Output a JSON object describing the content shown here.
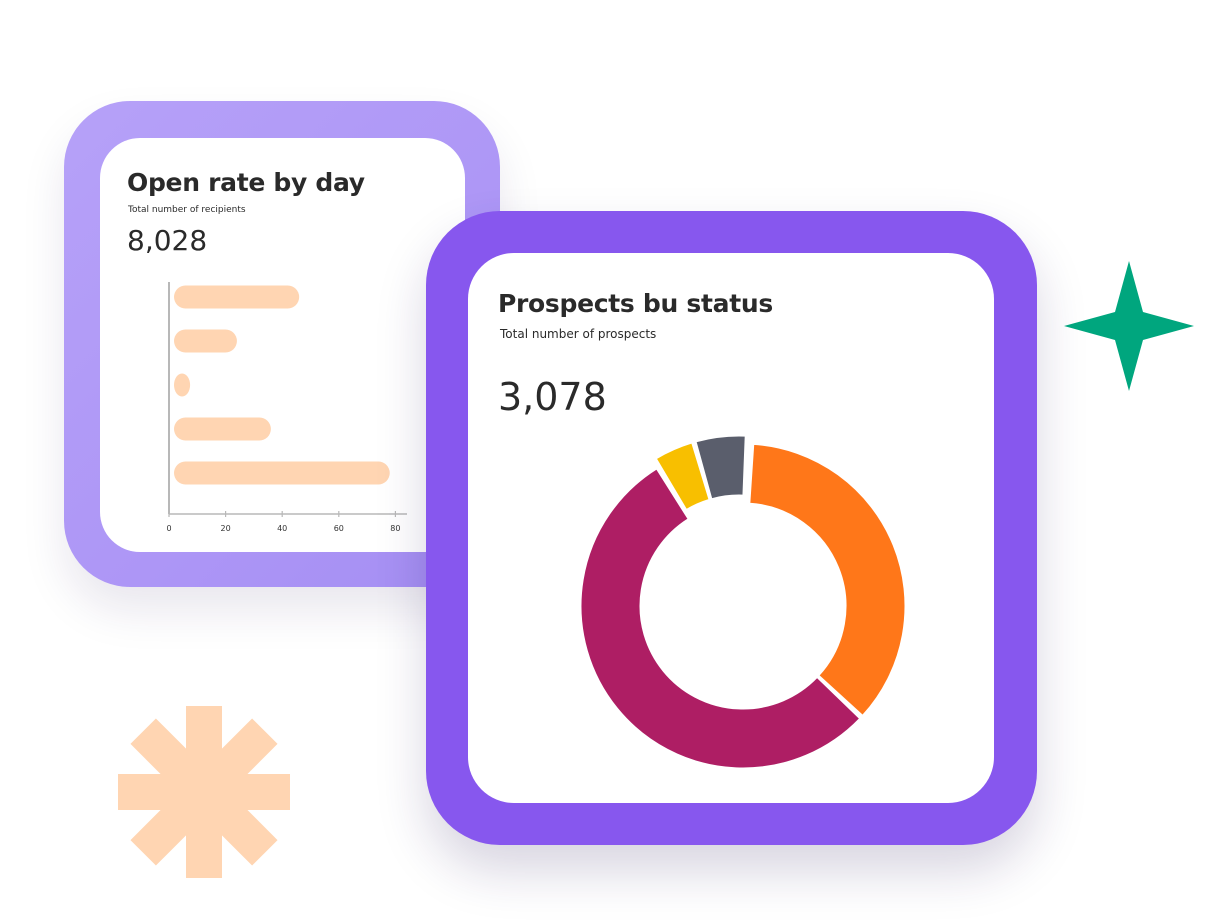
{
  "colors": {
    "left_frame": "#b09bf7",
    "right_frame": "#8757ee",
    "bar": "#ffd5b2",
    "axis": "#b8b8b8",
    "sparkle": "#00a67e",
    "asterisk": "#ffd5b2"
  },
  "decorations": {
    "sparkle": "sparkle-star-icon",
    "asterisk": "asterisk-shape-icon"
  },
  "left_card": {
    "title": "Open rate by day",
    "subtitle": "Total number of recipients",
    "total": "8,028"
  },
  "right_card": {
    "title": "Prospects bu status",
    "subtitle": "Total number of prospects",
    "total": "3,078"
  },
  "chart_data": [
    {
      "type": "bar",
      "orientation": "horizontal",
      "values": [
        46,
        24,
        6,
        36,
        78
      ],
      "xlim": [
        0,
        85
      ],
      "x_ticks": [
        "0",
        "20",
        "40",
        "60",
        "80"
      ],
      "color": "#ffd5b2"
    },
    {
      "type": "pie",
      "donut": true,
      "slices": [
        {
          "value": 34,
          "color": "#ff7719"
        },
        {
          "value": 51,
          "color": "#ae1e64"
        },
        {
          "value": 4,
          "color": "#f8bf00"
        },
        {
          "value": 5,
          "color": "#5a5e6c"
        }
      ]
    }
  ]
}
